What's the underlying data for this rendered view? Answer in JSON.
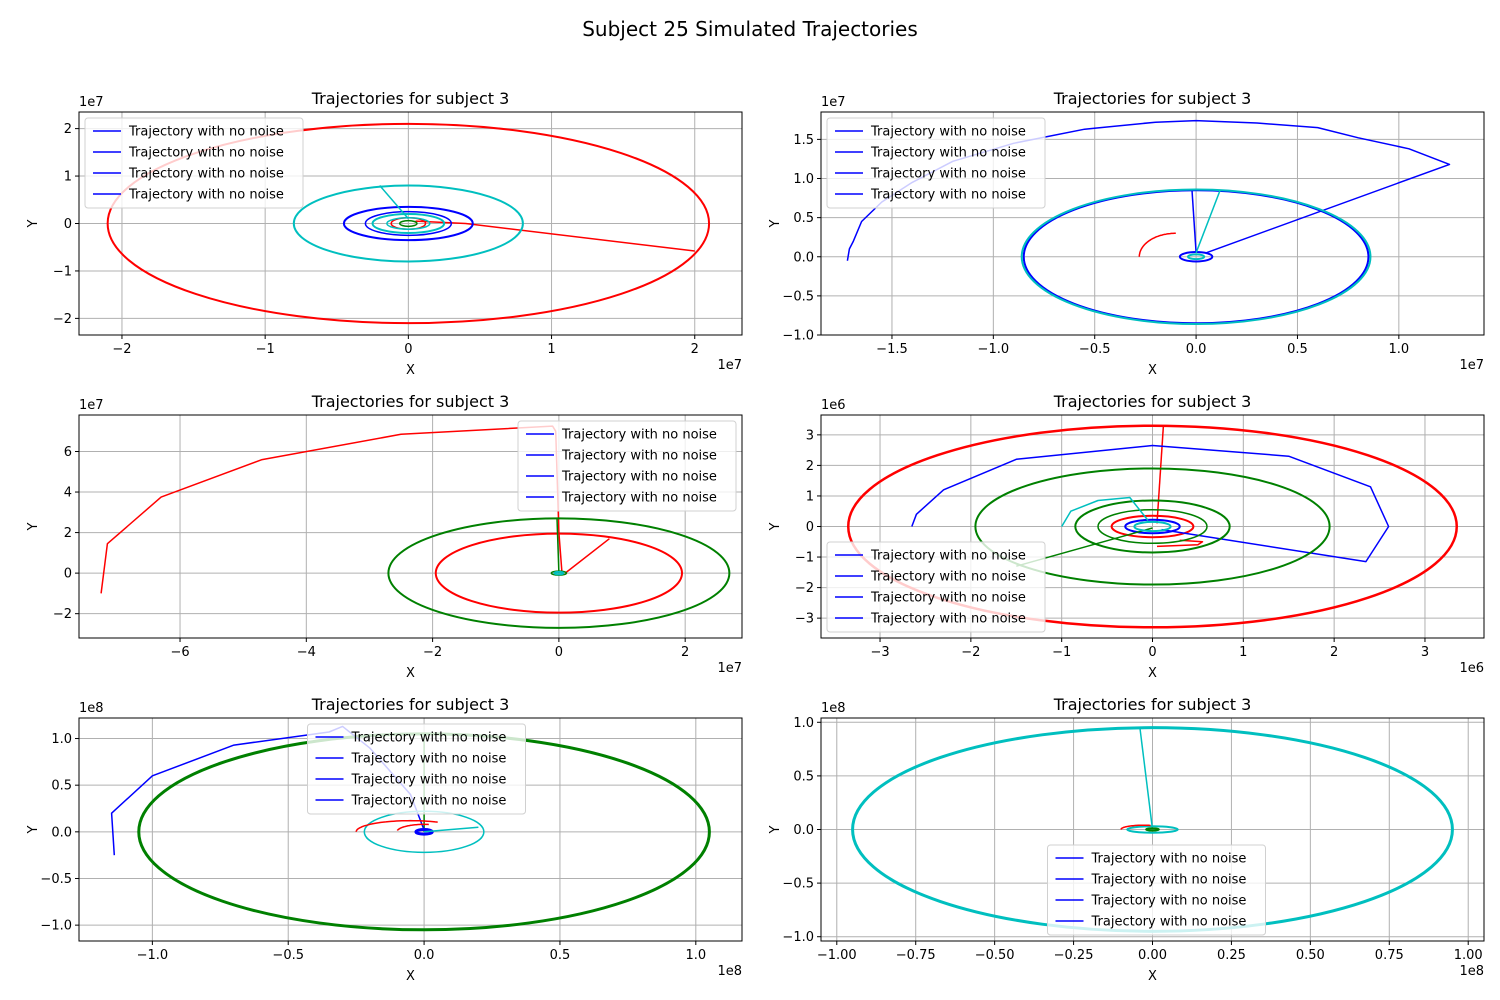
{
  "figure": {
    "title": "Subject 25 Simulated Trajectories"
  },
  "colors": {
    "red": "#ff0000",
    "blue": "#0000ff",
    "green": "#008000",
    "cyan": "#00bfbf",
    "grid": "#b0b0b0"
  },
  "chart_data": [
    {
      "type": "line",
      "title": "Trajectories for subject 3",
      "xlabel": "X",
      "ylabel": "Y",
      "x_offset_text": "1e7",
      "y_offset_text": "1e7",
      "xlim": [
        -2.3,
        2.33
      ],
      "ylim": [
        -2.35,
        2.35
      ],
      "xticks": [
        -2,
        -1,
        0,
        1,
        2
      ],
      "xtick_labels": [
        "−2",
        "−1",
        "0",
        "1",
        "2"
      ],
      "yticks": [
        -2,
        -1,
        0,
        1,
        2
      ],
      "ytick_labels": [
        "−2",
        "−1",
        "0",
        "1",
        "2"
      ],
      "grid": true,
      "legend_position": "upper-left",
      "legend": [
        "Trajectory with no noise",
        "Trajectory with no noise",
        "Trajectory with no noise",
        "Trajectory with no noise"
      ],
      "series": [
        {
          "color": "red",
          "kind": "orbit",
          "center": [
            0,
            0
          ],
          "rx": 2.1,
          "ry": 2.1,
          "lw": 2,
          "tail": [
            [
              0.05,
              0.05
            ],
            [
              0.4,
              0.0
            ],
            [
              2.0,
              -0.58
            ]
          ]
        },
        {
          "color": "red",
          "kind": "orbit",
          "center": [
            0,
            0
          ],
          "rx": 0.12,
          "ry": 0.12,
          "lw": 1.5
        },
        {
          "color": "blue",
          "kind": "orbit",
          "center": [
            0,
            0
          ],
          "rx": 0.45,
          "ry": 0.35,
          "lw": 2
        },
        {
          "color": "blue",
          "kind": "orbit",
          "center": [
            0,
            0
          ],
          "rx": 0.3,
          "ry": 0.25,
          "lw": 1.5
        },
        {
          "color": "cyan",
          "kind": "orbit",
          "center": [
            0,
            0
          ],
          "rx": 0.8,
          "ry": 0.8,
          "lw": 2,
          "tail": [
            [
              0.0,
              0.1
            ],
            [
              -0.2,
              0.8
            ]
          ]
        },
        {
          "color": "cyan",
          "kind": "orbit",
          "center": [
            0,
            0
          ],
          "rx": 0.25,
          "ry": 0.2,
          "lw": 2
        },
        {
          "color": "cyan",
          "kind": "orbit",
          "center": [
            0,
            0
          ],
          "rx": 0.15,
          "ry": 0.12,
          "lw": 1.5
        },
        {
          "color": "green",
          "kind": "orbit",
          "center": [
            0,
            0
          ],
          "rx": 0.06,
          "ry": 0.06,
          "lw": 1.5
        }
      ]
    },
    {
      "type": "line",
      "title": "Trajectories for subject 3",
      "xlabel": "X",
      "ylabel": "Y",
      "x_offset_text": "1e7",
      "y_offset_text": "1e7",
      "xlim": [
        -1.85,
        1.42
      ],
      "ylim": [
        -1.0,
        1.85
      ],
      "xticks": [
        -1.5,
        -1.0,
        -0.5,
        0.0,
        0.5,
        1.0
      ],
      "xtick_labels": [
        "−1.5",
        "−1.0",
        "−0.5",
        "0.0",
        "0.5",
        "1.0"
      ],
      "yticks": [
        -1.0,
        -0.5,
        0.0,
        0.5,
        1.0,
        1.5
      ],
      "ytick_labels": [
        "−1.0",
        "−0.5",
        "0.0",
        "0.5",
        "1.0",
        "1.5"
      ],
      "grid": true,
      "legend_position": "upper-left",
      "legend": [
        "Trajectory with no noise",
        "Trajectory with no noise",
        "Trajectory with no noise",
        "Trajectory with no noise"
      ],
      "series": [
        {
          "color": "blue",
          "kind": "path",
          "points": [
            [
              -1.72,
              -0.05
            ],
            [
              -1.71,
              0.1
            ],
            [
              -1.69,
              0.2
            ],
            [
              -1.65,
              0.45
            ],
            [
              -1.55,
              0.7
            ],
            [
              -1.4,
              0.95
            ],
            [
              -1.2,
              1.22
            ],
            [
              -0.9,
              1.45
            ],
            [
              -0.55,
              1.63
            ],
            [
              -0.2,
              1.72
            ],
            [
              0.0,
              1.74
            ],
            [
              0.3,
              1.71
            ],
            [
              0.6,
              1.65
            ],
            [
              0.8,
              1.52
            ],
            [
              1.05,
              1.38
            ],
            [
              1.25,
              1.18
            ],
            [
              0.05,
              0.05
            ]
          ]
        },
        {
          "color": "blue",
          "kind": "orbit",
          "center": [
            0,
            0
          ],
          "rx": 0.85,
          "ry": 0.85,
          "lw": 2,
          "tail": [
            [
              0.0,
              0.05
            ],
            [
              -0.02,
              0.85
            ]
          ]
        },
        {
          "color": "blue",
          "kind": "orbit",
          "center": [
            0,
            0
          ],
          "rx": 0.08,
          "ry": 0.06,
          "lw": 2
        },
        {
          "color": "cyan",
          "kind": "orbit",
          "center": [
            0,
            0
          ],
          "rx": 0.86,
          "ry": 0.86,
          "lw": 2,
          "tail": [
            [
              0.0,
              0.05
            ],
            [
              0.12,
              0.86
            ]
          ]
        },
        {
          "color": "cyan",
          "kind": "orbit",
          "center": [
            0,
            0
          ],
          "rx": 0.04,
          "ry": 0.03,
          "lw": 2
        },
        {
          "color": "red",
          "kind": "arc",
          "center": [
            -0.1,
            0.0
          ],
          "rx": 0.18,
          "ry": 0.3,
          "a0": 180,
          "a1": 90,
          "lw": 1.5
        }
      ]
    },
    {
      "type": "line",
      "title": "Trajectories for subject 3",
      "xlabel": "X",
      "ylabel": "Y",
      "x_offset_text": "1e7",
      "y_offset_text": "1e7",
      "xlim": [
        -7.6,
        2.9
      ],
      "ylim": [
        -3.2,
        7.8
      ],
      "xticks": [
        -6,
        -4,
        -2,
        0,
        2
      ],
      "xtick_labels": [
        "−6",
        "−4",
        "−2",
        "0",
        "2"
      ],
      "yticks": [
        -2,
        0,
        2,
        4,
        6
      ],
      "ytick_labels": [
        "−2",
        "0",
        "2",
        "4",
        "6"
      ],
      "grid": true,
      "legend_position": "upper-right",
      "legend": [
        "Trajectory with no noise",
        "Trajectory with no noise",
        "Trajectory with no noise",
        "Trajectory with no noise"
      ],
      "series": [
        {
          "color": "red",
          "kind": "path",
          "points": [
            [
              -7.25,
              -1.0
            ],
            [
              -7.15,
              1.45
            ],
            [
              -6.3,
              3.75
            ],
            [
              -4.7,
              5.6
            ],
            [
              -2.5,
              6.85
            ],
            [
              -0.1,
              7.25
            ],
            [
              -0.05,
              7.0
            ],
            [
              0.0,
              2.0
            ],
            [
              0.05,
              0.0
            ]
          ]
        },
        {
          "color": "red",
          "kind": "orbit",
          "center": [
            0,
            0
          ],
          "rx": 1.95,
          "ry": 1.95,
          "lw": 2,
          "tail": [
            [
              0.1,
              0.0
            ],
            [
              0.8,
              1.7
            ]
          ]
        },
        {
          "color": "green",
          "kind": "orbit",
          "center": [
            0,
            0
          ],
          "rx": 2.7,
          "ry": 2.7,
          "lw": 2,
          "tail": [
            [
              0.0,
              0.0
            ],
            [
              -0.03,
              2.7
            ]
          ]
        },
        {
          "color": "green",
          "kind": "orbit",
          "center": [
            0,
            0
          ],
          "rx": 0.12,
          "ry": 0.1,
          "lw": 1.5
        },
        {
          "color": "cyan",
          "kind": "orbit",
          "center": [
            0,
            0
          ],
          "rx": 0.07,
          "ry": 0.06,
          "lw": 2
        }
      ]
    },
    {
      "type": "line",
      "title": "Trajectories for subject 3",
      "xlabel": "X",
      "ylabel": "Y",
      "x_offset_text": "1e6",
      "y_offset_text": "1e6",
      "xlim": [
        -3.65,
        3.65
      ],
      "ylim": [
        -3.65,
        3.65
      ],
      "xticks": [
        -3,
        -2,
        -1,
        0,
        1,
        2,
        3
      ],
      "xtick_labels": [
        "−3",
        "−2",
        "−1",
        "0",
        "1",
        "2",
        "3"
      ],
      "yticks": [
        -3,
        -2,
        -1,
        0,
        1,
        2,
        3
      ],
      "ytick_labels": [
        "−3",
        "−2",
        "−1",
        "0",
        "1",
        "2",
        "3"
      ],
      "grid": true,
      "legend_position": "lower-left",
      "legend": [
        "Trajectory with no noise",
        "Trajectory with no noise",
        "Trajectory with no noise",
        "Trajectory with no noise"
      ],
      "series": [
        {
          "color": "red",
          "kind": "orbit",
          "center": [
            0,
            0
          ],
          "rx": 3.35,
          "ry": 3.3,
          "lw": 2.5,
          "tail": [
            [
              0.05,
              0.1
            ],
            [
              0.12,
              3.3
            ]
          ]
        },
        {
          "color": "red",
          "kind": "orbit",
          "center": [
            0,
            0
          ],
          "rx": 0.45,
          "ry": 0.35,
          "lw": 2
        },
        {
          "color": "red",
          "kind": "path",
          "points": [
            [
              0.05,
              -0.65
            ],
            [
              0.5,
              -0.6
            ],
            [
              0.55,
              -0.5
            ],
            [
              0.3,
              -0.45
            ]
          ]
        },
        {
          "color": "blue",
          "kind": "path",
          "points": [
            [
              -2.65,
              0.0
            ],
            [
              -2.6,
              0.4
            ],
            [
              -2.3,
              1.2
            ],
            [
              -1.5,
              2.2
            ],
            [
              0.0,
              2.65
            ],
            [
              1.5,
              2.3
            ],
            [
              2.4,
              1.3
            ],
            [
              2.6,
              0.0
            ],
            [
              2.35,
              -1.15
            ],
            [
              0.1,
              -0.1
            ]
          ]
        },
        {
          "color": "blue",
          "kind": "orbit",
          "center": [
            0,
            0
          ],
          "rx": 0.3,
          "ry": 0.22,
          "lw": 2
        },
        {
          "color": "green",
          "kind": "orbit",
          "center": [
            0,
            0
          ],
          "rx": 1.95,
          "ry": 1.9,
          "lw": 2,
          "tail": [
            [
              -1.5,
              -1.3
            ],
            [
              0.0,
              -0.05
            ]
          ]
        },
        {
          "color": "green",
          "kind": "orbit",
          "center": [
            0,
            0
          ],
          "rx": 0.85,
          "ry": 0.85,
          "lw": 2
        },
        {
          "color": "green",
          "kind": "orbit",
          "center": [
            0,
            0
          ],
          "rx": 0.6,
          "ry": 0.55,
          "lw": 1.5
        },
        {
          "color": "cyan",
          "kind": "path",
          "points": [
            [
              -1.0,
              0.0
            ],
            [
              -0.9,
              0.5
            ],
            [
              -0.6,
              0.85
            ],
            [
              -0.25,
              0.95
            ],
            [
              -0.05,
              0.2
            ]
          ]
        },
        {
          "color": "cyan",
          "kind": "orbit",
          "center": [
            0,
            0
          ],
          "rx": 0.2,
          "ry": 0.15,
          "lw": 2
        }
      ]
    },
    {
      "type": "line",
      "title": "Trajectories for subject 3",
      "xlabel": "X",
      "ylabel": "Y",
      "x_offset_text": "1e8",
      "y_offset_text": "1e8",
      "xlim": [
        -1.27,
        1.17
      ],
      "ylim": [
        -1.17,
        1.22
      ],
      "xticks": [
        -1.0,
        -0.5,
        0.0,
        0.5,
        1.0
      ],
      "xtick_labels": [
        "−1.0",
        "−0.5",
        "0.0",
        "0.5",
        "1.0"
      ],
      "yticks": [
        -1.0,
        -0.5,
        0.0,
        0.5,
        1.0
      ],
      "ytick_labels": [
        "−1.0",
        "−0.5",
        "0.0",
        "0.5",
        "1.0"
      ],
      "grid": true,
      "legend_position": "upper-center",
      "legend": [
        "Trajectory with no noise",
        "Trajectory with no noise",
        "Trajectory with no noise",
        "Trajectory with no noise"
      ],
      "series": [
        {
          "color": "green",
          "kind": "orbit",
          "center": [
            0,
            0
          ],
          "rx": 1.05,
          "ry": 1.05,
          "lw": 3,
          "tail": [
            [
              0.0,
              0.0
            ],
            [
              0.0,
              1.05
            ]
          ]
        },
        {
          "color": "blue",
          "kind": "path",
          "points": [
            [
              -1.14,
              -0.25
            ],
            [
              -1.15,
              0.2
            ],
            [
              -1.0,
              0.6
            ],
            [
              -0.7,
              0.93
            ],
            [
              -0.35,
              1.07
            ],
            [
              -0.3,
              1.13
            ],
            [
              -0.2,
              0.9
            ],
            [
              -0.05,
              0.4
            ],
            [
              0.0,
              0.02
            ]
          ]
        },
        {
          "color": "blue",
          "kind": "orbit",
          "center": [
            0,
            0
          ],
          "rx": 0.03,
          "ry": 0.025,
          "lw": 3
        },
        {
          "color": "cyan",
          "kind": "orbit",
          "center": [
            0.0,
            0.0
          ],
          "rx": 0.22,
          "ry": 0.22,
          "lw": 1.5,
          "tail": [
            [
              0.0,
              0.0
            ],
            [
              0.2,
              0.05
            ]
          ]
        },
        {
          "color": "red",
          "kind": "arc",
          "center": [
            -0.05,
            0.0
          ],
          "rx": 0.2,
          "ry": 0.12,
          "a0": 180,
          "a1": 60,
          "lw": 1.5
        },
        {
          "color": "red",
          "kind": "arc",
          "center": [
            0.0,
            0.0
          ],
          "rx": 0.1,
          "ry": 0.08,
          "a0": 170,
          "a1": 80,
          "lw": 1.5
        }
      ]
    },
    {
      "type": "line",
      "title": "Trajectories for subject 3",
      "xlabel": "X",
      "ylabel": "Y",
      "x_offset_text": "1e8",
      "y_offset_text": "1e8",
      "xlim": [
        -1.05,
        1.05
      ],
      "ylim": [
        -1.04,
        1.04
      ],
      "xticks": [
        -1.0,
        -0.75,
        -0.5,
        -0.25,
        0.0,
        0.25,
        0.5,
        0.75,
        1.0
      ],
      "xtick_labels": [
        "−1.00",
        "−0.75",
        "−0.50",
        "−0.25",
        "0.00",
        "0.25",
        "0.50",
        "0.75",
        "1.00"
      ],
      "yticks": [
        -1.0,
        -0.5,
        0.0,
        0.5,
        1.0
      ],
      "ytick_labels": [
        "−1.0",
        "−0.5",
        "0.0",
        "0.5",
        "1.0"
      ],
      "grid": true,
      "legend_position": "lower-center",
      "legend": [
        "Trajectory with no noise",
        "Trajectory with no noise",
        "Trajectory with no noise",
        "Trajectory with no noise"
      ],
      "series": [
        {
          "color": "cyan",
          "kind": "orbit",
          "center": [
            0,
            0
          ],
          "rx": 0.95,
          "ry": 0.95,
          "lw": 3,
          "tail": [
            [
              0.0,
              0.0
            ],
            [
              -0.04,
              0.95
            ]
          ]
        },
        {
          "color": "cyan",
          "kind": "orbit",
          "center": [
            0,
            0
          ],
          "rx": 0.08,
          "ry": 0.03,
          "lw": 2
        },
        {
          "color": "red",
          "kind": "arc",
          "center": [
            -0.03,
            0.0
          ],
          "rx": 0.07,
          "ry": 0.04,
          "a0": 180,
          "a1": 70,
          "lw": 1.5
        },
        {
          "color": "green",
          "kind": "orbit",
          "center": [
            0,
            0
          ],
          "rx": 0.02,
          "ry": 0.01,
          "lw": 2
        }
      ]
    }
  ]
}
